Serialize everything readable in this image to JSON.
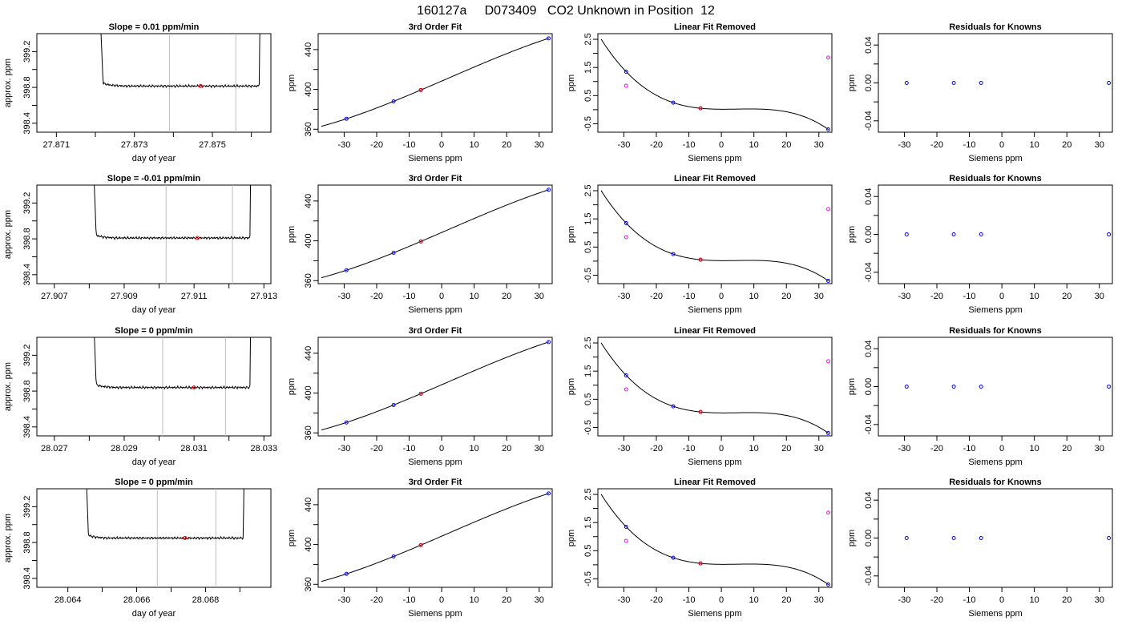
{
  "page": {
    "title": "160127a     D073409   CO2 Unknown in Position  12"
  },
  "colors": {
    "trace": "#000000",
    "known_point": "#0000ff",
    "unknown_point": "#ff0000",
    "linear_resid": "#ff00ff",
    "cal_window": "#bebebe",
    "frame": "#000000"
  },
  "chart_data": [
    {
      "type": "line",
      "title": "Slope =  0.01  ppm/min",
      "xlabel": "day of year",
      "ylabel": "approx. ppm",
      "xlim": [
        27.8705,
        27.8765
      ],
      "ylim": [
        398.3,
        399.4
      ],
      "xticks": [
        27.871,
        27.873,
        27.875
      ],
      "xticklabels": [
        "27.871",
        "27.873",
        "27.875"
      ],
      "yticks": [
        398.4,
        398.8,
        399.2
      ],
      "yticklabels": [
        "398.4",
        "398.8",
        "399.2"
      ],
      "grid": false,
      "ramp": [
        27.8722,
        27.8762
      ],
      "window": [
        27.8739,
        27.8756
      ],
      "baseline": 398.815,
      "unknown_marker": [
        27.8747,
        398.815
      ]
    },
    {
      "type": "scatter",
      "title": "3rd Order Fit",
      "xlabel": "Siemens ppm",
      "ylabel": "ppm",
      "xlim": [
        -38,
        34
      ],
      "ylim": [
        357,
        456
      ],
      "xticks": [
        -30,
        -20,
        -10,
        0,
        10,
        20,
        30
      ],
      "xticklabels": [
        "-30",
        "-20",
        "-10",
        "0",
        "10",
        "20",
        "30"
      ],
      "yticks": [
        360,
        400,
        440
      ],
      "yticklabels": [
        "360",
        "400",
        "440"
      ],
      "grid": false,
      "fit_range": [
        -37,
        33
      ],
      "known_x": [
        -29.3,
        -14.8,
        -6.4,
        32.9
      ],
      "known_y": [
        370.5,
        388.0,
        399.4,
        451.3
      ],
      "unknown_x": -6.4,
      "unknown_y": 399.4
    },
    {
      "type": "scatter",
      "title": "Linear Fit Removed",
      "xlabel": "Siemens ppm",
      "ylabel": "ppm",
      "xlim": [
        -38,
        34
      ],
      "ylim": [
        -0.8,
        2.7
      ],
      "xticks": [
        -30,
        -20,
        -10,
        0,
        10,
        20,
        30
      ],
      "xticklabels": [
        "-30",
        "-20",
        "-10",
        "0",
        "10",
        "20",
        "30"
      ],
      "yticks": [
        -0.5,
        0.5,
        1.5,
        2.5
      ],
      "yticklabels": [
        "-0.5",
        "0.5",
        "1.5",
        "2.5"
      ],
      "grid": false,
      "fit_range": [
        -37,
        33
      ],
      "known_x": [
        -29.3,
        -14.8,
        -6.4,
        32.9
      ],
      "known_y": [
        1.35,
        0.25,
        0.05,
        -0.7
      ],
      "linear_resid_x": [
        -29.3,
        32.9
      ],
      "linear_resid_y": [
        0.85,
        1.85
      ],
      "unknown_x": -6.4,
      "unknown_y": 0.05
    },
    {
      "type": "scatter",
      "title": "Residuals for Knowns",
      "xlabel": "Siemens ppm",
      "ylabel": "ppm",
      "xlim": [
        -38,
        34
      ],
      "ylim": [
        -0.052,
        0.052
      ],
      "xticks": [
        -30,
        -20,
        -10,
        0,
        10,
        20,
        30
      ],
      "xticklabels": [
        "-30",
        "-20",
        "-10",
        "0",
        "10",
        "20",
        "30"
      ],
      "yticks": [
        -0.04,
        0.0,
        0.04
      ],
      "yticklabels": [
        "-0.04",
        "0.00",
        "0.04"
      ],
      "grid": false,
      "known_x": [
        -29.3,
        -14.8,
        -6.4,
        32.9
      ],
      "known_y": [
        0,
        0,
        0,
        0
      ]
    },
    {
      "type": "line",
      "title": "Slope =  -0.01  ppm/min",
      "xlabel": "day of year",
      "ylabel": "approx. ppm",
      "xlim": [
        27.9065,
        27.9132
      ],
      "ylim": [
        398.3,
        399.4
      ],
      "xticks": [
        27.907,
        27.909,
        27.911,
        27.913
      ],
      "xticklabels": [
        "27.907",
        "27.909",
        "27.911",
        "27.913"
      ],
      "yticks": [
        398.4,
        398.8,
        399.2
      ],
      "yticklabels": [
        "398.4",
        "398.8",
        "399.2"
      ],
      "grid": false,
      "ramp": [
        27.9082,
        27.9126
      ],
      "window": [
        27.9102,
        27.9121
      ],
      "baseline": 398.81,
      "unknown_marker": [
        27.9111,
        398.81
      ]
    },
    {
      "type": "scatter",
      "title": "3rd Order Fit",
      "xlabel": "Siemens ppm",
      "ylabel": "ppm",
      "xlim": [
        -38,
        34
      ],
      "ylim": [
        357,
        456
      ],
      "xticks": [
        -30,
        -20,
        -10,
        0,
        10,
        20,
        30
      ],
      "xticklabels": [
        "-30",
        "-20",
        "-10",
        "0",
        "10",
        "20",
        "30"
      ],
      "yticks": [
        360,
        400,
        440
      ],
      "yticklabels": [
        "360",
        "400",
        "440"
      ],
      "grid": false,
      "fit_range": [
        -37,
        33
      ],
      "known_x": [
        -29.3,
        -14.8,
        -6.4,
        32.9
      ],
      "known_y": [
        370.5,
        388.0,
        399.4,
        451.3
      ],
      "unknown_x": -6.4,
      "unknown_y": 399.4
    },
    {
      "type": "scatter",
      "title": "Linear Fit Removed",
      "xlabel": "Siemens ppm",
      "ylabel": "ppm",
      "xlim": [
        -38,
        34
      ],
      "ylim": [
        -0.8,
        2.7
      ],
      "xticks": [
        -30,
        -20,
        -10,
        0,
        10,
        20,
        30
      ],
      "xticklabels": [
        "-30",
        "-20",
        "-10",
        "0",
        "10",
        "20",
        "30"
      ],
      "yticks": [
        -0.5,
        0.5,
        1.5,
        2.5
      ],
      "yticklabels": [
        "-0.5",
        "0.5",
        "1.5",
        "2.5"
      ],
      "grid": false,
      "fit_range": [
        -37,
        33
      ],
      "known_x": [
        -29.3,
        -14.8,
        -6.4,
        32.9
      ],
      "known_y": [
        1.35,
        0.25,
        0.05,
        -0.7
      ],
      "linear_resid_x": [
        -29.3,
        32.9
      ],
      "linear_resid_y": [
        0.85,
        1.85
      ],
      "unknown_x": -6.4,
      "unknown_y": 0.05
    },
    {
      "type": "scatter",
      "title": "Residuals for Knowns",
      "xlabel": "Siemens ppm",
      "ylabel": "ppm",
      "xlim": [
        -38,
        34
      ],
      "ylim": [
        -0.052,
        0.052
      ],
      "xticks": [
        -30,
        -20,
        -10,
        0,
        10,
        20,
        30
      ],
      "xticklabels": [
        "-30",
        "-20",
        "-10",
        "0",
        "10",
        "20",
        "30"
      ],
      "yticks": [
        -0.04,
        0.0,
        0.04
      ],
      "yticklabels": [
        "-0.04",
        "0.00",
        "0.04"
      ],
      "grid": false,
      "known_x": [
        -29.3,
        -14.8,
        -6.4,
        32.9
      ],
      "known_y": [
        0,
        0,
        0,
        0
      ]
    },
    {
      "type": "line",
      "title": "Slope =  0  ppm/min",
      "xlabel": "day of year",
      "ylabel": "approx. ppm",
      "xlim": [
        28.0265,
        28.0332
      ],
      "ylim": [
        398.3,
        399.4
      ],
      "xticks": [
        28.027,
        28.029,
        28.031,
        28.033
      ],
      "xticklabels": [
        "28.027",
        "28.029",
        "28.031",
        "28.033"
      ],
      "yticks": [
        398.4,
        398.8,
        399.2
      ],
      "yticklabels": [
        "398.4",
        "398.8",
        "399.2"
      ],
      "grid": false,
      "ramp": [
        28.0282,
        28.0326
      ],
      "window": [
        28.0301,
        28.0319
      ],
      "baseline": 398.84,
      "unknown_marker": [
        28.031,
        398.84
      ]
    },
    {
      "type": "scatter",
      "title": "3rd Order Fit",
      "xlabel": "Siemens ppm",
      "ylabel": "ppm",
      "xlim": [
        -38,
        34
      ],
      "ylim": [
        357,
        456
      ],
      "xticks": [
        -30,
        -20,
        -10,
        0,
        10,
        20,
        30
      ],
      "xticklabels": [
        "-30",
        "-20",
        "-10",
        "0",
        "10",
        "20",
        "30"
      ],
      "yticks": [
        360,
        400,
        440
      ],
      "yticklabels": [
        "360",
        "400",
        "440"
      ],
      "grid": false,
      "fit_range": [
        -37,
        33
      ],
      "known_x": [
        -29.3,
        -14.8,
        -6.4,
        32.9
      ],
      "known_y": [
        370.5,
        388.0,
        399.4,
        451.3
      ],
      "unknown_x": -6.4,
      "unknown_y": 399.4
    },
    {
      "type": "scatter",
      "title": "Linear Fit Removed",
      "xlabel": "Siemens ppm",
      "ylabel": "ppm",
      "xlim": [
        -38,
        34
      ],
      "ylim": [
        -0.8,
        2.7
      ],
      "xticks": [
        -30,
        -20,
        -10,
        0,
        10,
        20,
        30
      ],
      "xticklabels": [
        "-30",
        "-20",
        "-10",
        "0",
        "10",
        "20",
        "30"
      ],
      "yticks": [
        -0.5,
        0.5,
        1.5,
        2.5
      ],
      "yticklabels": [
        "-0.5",
        "0.5",
        "1.5",
        "2.5"
      ],
      "grid": false,
      "fit_range": [
        -37,
        33
      ],
      "known_x": [
        -29.3,
        -14.8,
        -6.4,
        32.9
      ],
      "known_y": [
        1.35,
        0.25,
        0.05,
        -0.7
      ],
      "linear_resid_x": [
        -29.3,
        32.9
      ],
      "linear_resid_y": [
        0.85,
        1.85
      ],
      "unknown_x": -6.4,
      "unknown_y": 0.05
    },
    {
      "type": "scatter",
      "title": "Residuals for Knowns",
      "xlabel": "Siemens ppm",
      "ylabel": "ppm",
      "xlim": [
        -38,
        34
      ],
      "ylim": [
        -0.052,
        0.052
      ],
      "xticks": [
        -30,
        -20,
        -10,
        0,
        10,
        20,
        30
      ],
      "xticklabels": [
        "-30",
        "-20",
        "-10",
        "0",
        "10",
        "20",
        "30"
      ],
      "yticks": [
        -0.04,
        0.0,
        0.04
      ],
      "yticklabels": [
        "-0.04",
        "0.00",
        "0.04"
      ],
      "grid": false,
      "known_x": [
        -29.3,
        -14.8,
        -6.4,
        32.9
      ],
      "known_y": [
        0,
        0,
        0,
        0
      ]
    },
    {
      "type": "line",
      "title": "Slope =  0  ppm/min",
      "xlabel": "day of year",
      "ylabel": "approx. ppm",
      "xlim": [
        28.0631,
        28.0699
      ],
      "ylim": [
        398.3,
        399.4
      ],
      "xticks": [
        28.064,
        28.066,
        28.068
      ],
      "xticklabels": [
        "28.064",
        "28.066",
        "28.068"
      ],
      "yticks": [
        398.4,
        398.8,
        399.2
      ],
      "yticklabels": [
        "398.4",
        "398.8",
        "399.2"
      ],
      "grid": false,
      "ramp": [
        28.0646,
        28.0691
      ],
      "window": [
        28.0666,
        28.0683
      ],
      "baseline": 398.85,
      "unknown_marker": [
        28.0674,
        398.85
      ]
    },
    {
      "type": "scatter",
      "title": "3rd Order Fit",
      "xlabel": "Siemens ppm",
      "ylabel": "ppm",
      "xlim": [
        -38,
        34
      ],
      "ylim": [
        357,
        456
      ],
      "xticks": [
        -30,
        -20,
        -10,
        0,
        10,
        20,
        30
      ],
      "xticklabels": [
        "-30",
        "-20",
        "-10",
        "0",
        "10",
        "20",
        "30"
      ],
      "yticks": [
        360,
        400,
        440
      ],
      "yticklabels": [
        "360",
        "400",
        "440"
      ],
      "grid": false,
      "fit_range": [
        -37,
        33
      ],
      "known_x": [
        -29.3,
        -14.8,
        -6.4,
        32.9
      ],
      "known_y": [
        370.5,
        388.0,
        399.4,
        451.3
      ],
      "unknown_x": -6.4,
      "unknown_y": 399.4
    },
    {
      "type": "scatter",
      "title": "Linear Fit Removed",
      "xlabel": "Siemens ppm",
      "ylabel": "ppm",
      "xlim": [
        -38,
        34
      ],
      "ylim": [
        -0.8,
        2.7
      ],
      "xticks": [
        -30,
        -20,
        -10,
        0,
        10,
        20,
        30
      ],
      "xticklabels": [
        "-30",
        "-20",
        "-10",
        "0",
        "10",
        "20",
        "30"
      ],
      "yticks": [
        -0.5,
        0.5,
        1.5,
        2.5
      ],
      "yticklabels": [
        "-0.5",
        "0.5",
        "1.5",
        "2.5"
      ],
      "grid": false,
      "fit_range": [
        -37,
        33
      ],
      "known_x": [
        -29.3,
        -14.8,
        -6.4,
        32.9
      ],
      "known_y": [
        1.35,
        0.25,
        0.05,
        -0.7
      ],
      "linear_resid_x": [
        -29.3,
        32.9
      ],
      "linear_resid_y": [
        0.85,
        1.85
      ],
      "unknown_x": -6.4,
      "unknown_y": 0.05
    },
    {
      "type": "scatter",
      "title": "Residuals for Knowns",
      "xlabel": "Siemens ppm",
      "ylabel": "ppm",
      "xlim": [
        -38,
        34
      ],
      "ylim": [
        -0.052,
        0.052
      ],
      "xticks": [
        -30,
        -20,
        -10,
        0,
        10,
        20,
        30
      ],
      "xticklabels": [
        "-30",
        "-20",
        "-10",
        "0",
        "10",
        "20",
        "30"
      ],
      "yticks": [
        -0.04,
        0.0,
        0.04
      ],
      "yticklabels": [
        "-0.04",
        "0.00",
        "0.04"
      ],
      "grid": false,
      "known_x": [
        -29.3,
        -14.8,
        -6.4,
        32.9
      ],
      "known_y": [
        0,
        0,
        0,
        0
      ]
    }
  ]
}
